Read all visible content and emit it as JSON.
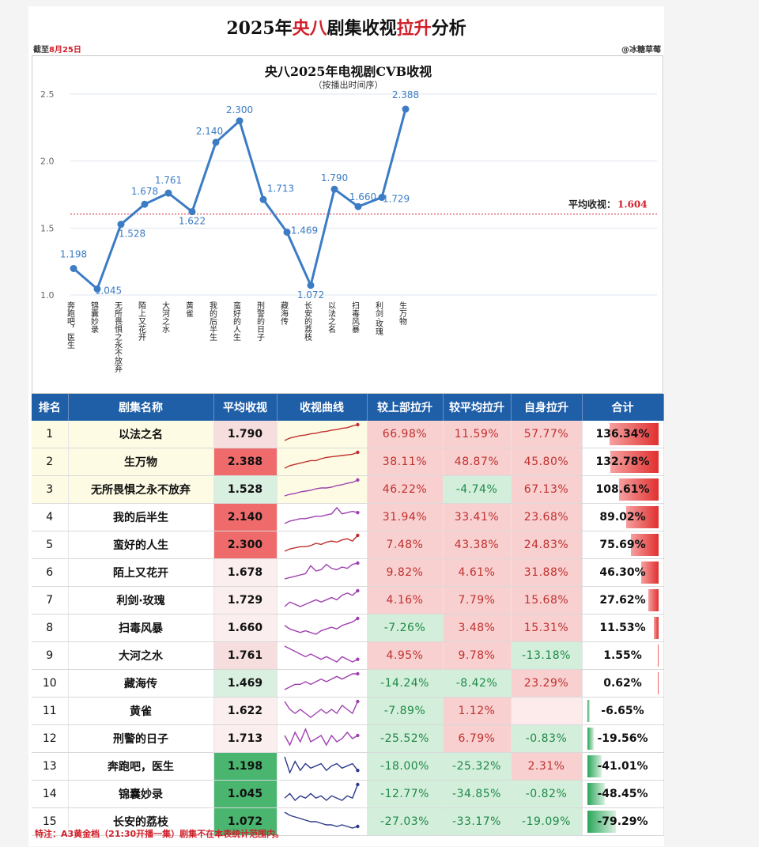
{
  "header": {
    "title_parts": [
      "2025年",
      "央八",
      "剧集收视",
      "拉升",
      "分析"
    ],
    "as_of_prefix": "截至",
    "as_of_date": "8月25日",
    "credit": "@冰糖草莓"
  },
  "chart_data": {
    "type": "line",
    "title": "央八2025年电视剧CVB收视",
    "subtitle": "（按播出时间序）",
    "categories": [
      "奔跑吧，医生",
      "锦囊妙录",
      "无所畏惧之永不放弃",
      "陌上又花开",
      "大河之水",
      "黄雀",
      "我的后半生",
      "蛮好的人生",
      "刑警的日子",
      "藏海传",
      "长安的荔枝",
      "以法之名",
      "扫毒风暴",
      "利剑·玫瑰",
      "生万物"
    ],
    "series": [
      {
        "values": [
          1.198,
          1.045,
          1.528,
          1.678,
          1.761,
          1.622,
          2.14,
          2.3,
          1.713,
          1.469,
          1.072,
          1.79,
          1.66,
          1.729,
          2.388
        ]
      }
    ],
    "value_labels": [
      "1.198",
      "1.045",
      "1.528",
      "1.678",
      "1.761",
      "1.622",
      "2.140",
      "2.300",
      "1.713",
      "1.469",
      "1.072",
      "1.790",
      "1.660",
      "1.729",
      "2.388"
    ],
    "ylim": [
      1.0,
      2.5
    ],
    "yticks": [
      "1.0",
      "1.5",
      "2.0",
      "2.5"
    ],
    "average": {
      "label": "平均收视：",
      "value": 1.604,
      "value_text": "1.604"
    },
    "grid": true,
    "line_color": "#3b7cc4",
    "avg_color": "#d0202a"
  },
  "table": {
    "headers": [
      "排名",
      "剧集名称",
      "平均收视",
      "收视曲线",
      "较上部拉升",
      "较平均拉升",
      "自身拉升",
      "合计"
    ],
    "rows": [
      {
        "rank": "1",
        "name": "以法之名",
        "avg": "1.790",
        "up_prev": "66.98%",
        "up_avg": "11.59%",
        "self": "57.77%",
        "total": "136.34%",
        "total_value": 136.34,
        "spark": [
          1.0,
          1.2,
          1.3,
          1.4,
          1.45,
          1.55,
          1.6,
          1.7,
          1.75,
          1.85,
          1.9,
          2.0,
          2.05,
          2.2,
          2.3
        ],
        "spark_color": "#c0302f"
      },
      {
        "rank": "2",
        "name": "生万物",
        "avg": "2.388",
        "up_prev": "38.11%",
        "up_avg": "48.87%",
        "self": "45.80%",
        "total": "132.78%",
        "total_value": 132.78,
        "spark": [
          1.5,
          1.7,
          1.8,
          1.9,
          2.0,
          2.1,
          2.1,
          2.25,
          2.35,
          2.4,
          2.45,
          2.5,
          2.55,
          2.6,
          2.75
        ],
        "spark_color": "#c0302f"
      },
      {
        "rank": "3",
        "name": "无所畏惧之永不放弃",
        "avg": "1.528",
        "up_prev": "46.22%",
        "up_avg": "-4.74%",
        "self": "67.13%",
        "total": "108.61%",
        "total_value": 108.61,
        "spark": [
          1.0,
          1.1,
          1.15,
          1.25,
          1.3,
          1.35,
          1.45,
          1.5,
          1.5,
          1.55,
          1.65,
          1.7,
          1.8,
          1.85,
          2.0
        ],
        "spark_color": "#a040b0"
      },
      {
        "rank": "4",
        "name": "我的后半生",
        "avg": "2.140",
        "up_prev": "31.94%",
        "up_avg": "33.41%",
        "self": "23.68%",
        "total": "89.02%",
        "total_value": 89.02,
        "spark": [
          1.8,
          1.9,
          1.95,
          2.0,
          2.0,
          2.05,
          2.1,
          2.1,
          2.15,
          2.2,
          2.45,
          2.2,
          2.25,
          2.3,
          2.25
        ],
        "spark_color": "#a040b0"
      },
      {
        "rank": "5",
        "name": "蛮好的人生",
        "avg": "2.300",
        "up_prev": "7.48%",
        "up_avg": "43.38%",
        "self": "24.83%",
        "total": "75.69%",
        "total_value": 75.69,
        "spark": [
          2.0,
          2.1,
          2.15,
          2.2,
          2.2,
          2.25,
          2.35,
          2.3,
          2.4,
          2.45,
          2.4,
          2.5,
          2.55,
          2.45,
          2.7
        ],
        "spark_color": "#c0302f"
      },
      {
        "rank": "6",
        "name": "陌上又花开",
        "avg": "1.678",
        "up_prev": "9.82%",
        "up_avg": "4.61%",
        "self": "31.88%",
        "total": "46.30%",
        "total_value": 46.3,
        "spark": [
          1.4,
          1.45,
          1.5,
          1.55,
          1.6,
          1.9,
          1.7,
          1.75,
          1.95,
          1.8,
          1.75,
          1.85,
          1.8,
          1.95,
          2.0
        ],
        "spark_color": "#a040b0"
      },
      {
        "rank": "7",
        "name": "利剑·玫瑰",
        "avg": "1.729",
        "up_prev": "4.16%",
        "up_avg": "7.79%",
        "self": "15.68%",
        "total": "27.62%",
        "total_value": 27.62,
        "spark": [
          1.6,
          1.7,
          1.65,
          1.6,
          1.65,
          1.7,
          1.75,
          1.7,
          1.75,
          1.8,
          1.75,
          1.85,
          1.9,
          1.85,
          1.95
        ],
        "spark_color": "#a040b0"
      },
      {
        "rank": "8",
        "name": "扫毒风暴",
        "avg": "1.660",
        "up_prev": "-7.26%",
        "up_avg": "3.48%",
        "self": "15.31%",
        "total": "11.53%",
        "total_value": 11.53,
        "spark": [
          1.7,
          1.6,
          1.55,
          1.5,
          1.55,
          1.5,
          1.45,
          1.55,
          1.6,
          1.65,
          1.6,
          1.7,
          1.75,
          1.8,
          1.9
        ],
        "spark_color": "#a040b0"
      },
      {
        "rank": "9",
        "name": "大河之水",
        "avg": "1.761",
        "up_prev": "4.95%",
        "up_avg": "9.78%",
        "self": "-13.18%",
        "total": "1.55%",
        "total_value": 1.55,
        "spark": [
          1.9,
          1.85,
          1.8,
          1.75,
          1.7,
          1.75,
          1.7,
          1.65,
          1.7,
          1.65,
          1.6,
          1.7,
          1.65,
          1.6,
          1.65
        ],
        "spark_color": "#a040b0"
      },
      {
        "rank": "10",
        "name": "藏海传",
        "avg": "1.469",
        "up_prev": "-14.24%",
        "up_avg": "-8.42%",
        "self": "23.29%",
        "total": "0.62%",
        "total_value": 0.62,
        "spark": [
          1.3,
          1.35,
          1.4,
          1.4,
          1.45,
          1.4,
          1.45,
          1.5,
          1.45,
          1.5,
          1.55,
          1.5,
          1.55,
          1.6,
          1.6
        ],
        "spark_color": "#a040b0"
      },
      {
        "rank": "11",
        "name": "黄雀",
        "avg": "1.622",
        "up_prev": "-7.89%",
        "up_avg": "1.12%",
        "self": "",
        "total": "-6.65%",
        "total_value": -6.65,
        "spark": [
          1.7,
          1.6,
          1.55,
          1.6,
          1.55,
          1.5,
          1.55,
          1.6,
          1.55,
          1.6,
          1.55,
          1.65,
          1.6,
          1.55,
          1.7
        ],
        "spark_color": "#a040b0"
      },
      {
        "rank": "12",
        "name": "刑警的日子",
        "avg": "1.713",
        "up_prev": "-25.52%",
        "up_avg": "6.79%",
        "self": "-0.83%",
        "total": "-19.56%",
        "total_value": -19.56,
        "spark": [
          1.75,
          1.6,
          1.8,
          1.65,
          1.85,
          1.65,
          1.7,
          1.75,
          1.6,
          1.75,
          1.65,
          1.7,
          1.8,
          1.7,
          1.75
        ],
        "spark_color": "#a040b0"
      },
      {
        "rank": "13",
        "name": "奔跑吧，医生",
        "avg": "1.198",
        "up_prev": "-18.00%",
        "up_avg": "-25.32%",
        "self": "2.31%",
        "total": "-41.01%",
        "total_value": -41.01,
        "spark": [
          1.4,
          1.05,
          1.3,
          1.1,
          1.25,
          1.15,
          1.2,
          1.25,
          1.1,
          1.2,
          1.25,
          1.15,
          1.2,
          1.25,
          1.1
        ],
        "spark_color": "#2d3a8c"
      },
      {
        "rank": "14",
        "name": "锦囊妙录",
        "avg": "1.045",
        "up_prev": "-12.77%",
        "up_avg": "-34.85%",
        "self": "-0.82%",
        "total": "-48.45%",
        "total_value": -48.45,
        "spark": [
          1.0,
          1.1,
          0.95,
          1.05,
          1.0,
          1.1,
          1.0,
          1.05,
          0.95,
          1.05,
          1.0,
          0.95,
          1.05,
          1.0,
          1.3
        ],
        "spark_color": "#2d3a8c"
      },
      {
        "rank": "15",
        "name": "长安的荔枝",
        "avg": "1.072",
        "up_prev": "-27.03%",
        "up_avg": "-33.17%",
        "self": "-19.09%",
        "total": "-79.29%",
        "total_value": -79.29,
        "spark": [
          1.4,
          1.3,
          1.25,
          1.2,
          1.15,
          1.1,
          1.1,
          1.05,
          1.0,
          1.0,
          0.95,
          1.0,
          0.95,
          0.9,
          0.95
        ],
        "spark_color": "#2d3a8c"
      }
    ],
    "positive_color": "#f8d0d0",
    "negative_color": "#d3eedb",
    "total_pos_color": "#e0302f",
    "total_neg_color": "#2aa65a"
  },
  "footnote": "特注：A3黄金档（21:30开播一集）剧集不在本表统计范围内。"
}
